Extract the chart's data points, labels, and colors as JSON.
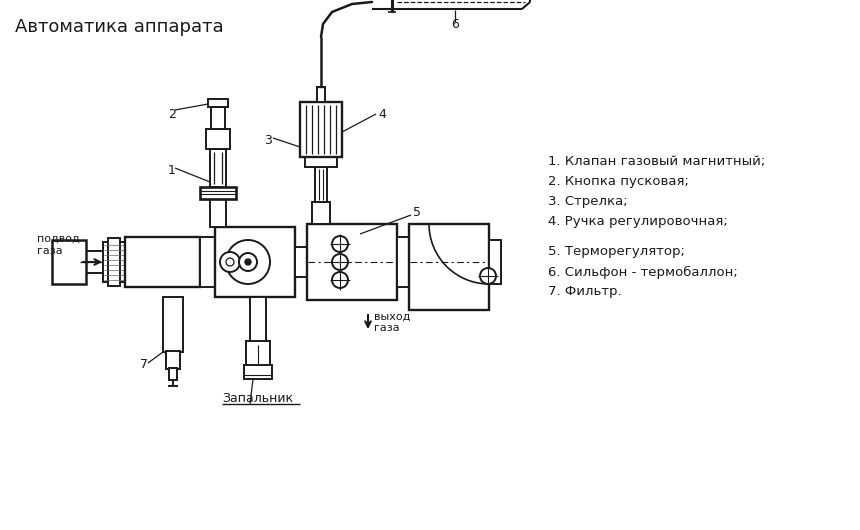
{
  "title": "Автоматика аппарата",
  "legend_1_4": [
    "1. Клапан газовый магнитный;",
    "2. Кнопка пусковая;",
    "3. Стрелка;",
    "4. Ручка регулировочная;"
  ],
  "legend_5_7": [
    "5. Терморегулятор;",
    "6. Сильфон - термобаллон;",
    "7. Фильтр."
  ],
  "label_podvod": "подвод\nгаза",
  "label_vykhod": "выход\nгаза",
  "label_zapalnik": "Запальник",
  "bg_color": "#ffffff",
  "lc": "#1a1a1a"
}
